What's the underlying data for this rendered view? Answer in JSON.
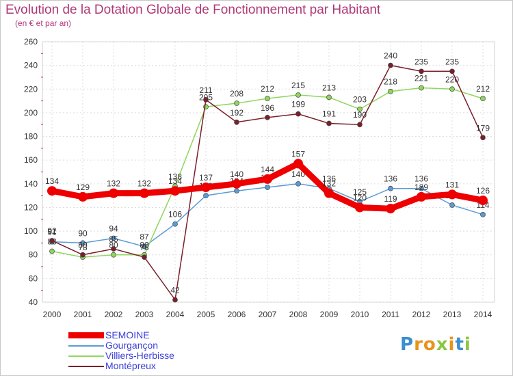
{
  "title": "Evolution de la Dotation Globale de Fonctionnement par Habitant",
  "subtitle": "(en € et par an)",
  "brand": {
    "text": "Proxiti",
    "letter_colors": [
      "#3b8ed0",
      "#e8931a",
      "#e8931a",
      "#8cc63f",
      "#e8931a",
      "#3b8ed0",
      "#8cc63f"
    ]
  },
  "chart_data": {
    "type": "line",
    "x": [
      "2000",
      "2001",
      "2002",
      "2003",
      "2004",
      "2005",
      "2006",
      "2007",
      "2008",
      "2009",
      "2010",
      "2011",
      "2012",
      "2013",
      "2014"
    ],
    "ylim": [
      40,
      260
    ],
    "yticks": [
      "40",
      "60",
      "80",
      "100",
      "120",
      "140",
      "160",
      "180",
      "200",
      "220",
      "240",
      "260"
    ],
    "grid": true,
    "legend_position": "bottom-left",
    "series": [
      {
        "name": "SEMOINE",
        "color": "#ee0000",
        "values": [
          134,
          129,
          132,
          132,
          134,
          137,
          140,
          144,
          157,
          132,
          120,
          119,
          129,
          131,
          126
        ],
        "labels": [
          "134",
          "129",
          "132",
          "132",
          "134",
          "137",
          "140",
          "144",
          "157",
          "132",
          "120",
          "119",
          "129",
          "131",
          "126"
        ],
        "emphasis": true
      },
      {
        "name": "Gourgançon",
        "color": "#5a9bd5",
        "values": [
          91,
          90,
          94,
          87,
          106,
          130,
          134,
          137,
          140,
          136,
          125,
          136,
          136,
          122,
          114
        ],
        "labels": [
          "91",
          "90",
          "94",
          "87",
          "106",
          "130",
          "134",
          "137",
          "140",
          "136",
          "125",
          "136",
          "136",
          "122",
          "114"
        ],
        "emphasis": false
      },
      {
        "name": "Villiers-Herbisse",
        "color": "#8fd65c",
        "values": [
          83,
          78,
          80,
          80,
          138,
          205,
          208,
          212,
          215,
          213,
          203,
          218,
          221,
          220,
          212
        ],
        "labels": [
          "83",
          "78",
          "80",
          "80",
          "138",
          "205",
          "208",
          "212",
          "215",
          "213",
          "203",
          "218",
          "221",
          "220",
          "212"
        ],
        "emphasis": false
      },
      {
        "name": "Montépreux",
        "color": "#7a1f2b",
        "values": [
          92,
          80,
          85,
          78,
          42,
          211,
          192,
          196,
          199,
          191,
          190,
          240,
          235,
          235,
          179
        ],
        "labels": [
          "92",
          "80",
          "85",
          "78",
          "42",
          "211",
          "192",
          "196",
          "199",
          "191",
          "190",
          "240",
          "235",
          "235",
          "179"
        ],
        "emphasis": false
      }
    ]
  }
}
